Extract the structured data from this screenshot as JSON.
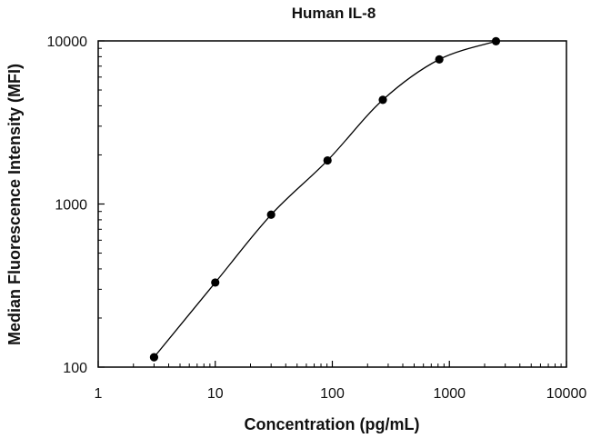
{
  "chart_data": {
    "type": "scatter",
    "title": "Human IL-8",
    "xlabel": "Concentration (pg/mL)",
    "ylabel": "Median Fluorescence Intensity (MFI)",
    "x_scale": "log",
    "y_scale": "log",
    "xlim": [
      1,
      10000
    ],
    "ylim": [
      100,
      10000
    ],
    "x_ticks": [
      1,
      10,
      100,
      1000,
      10000
    ],
    "y_ticks": [
      100,
      1000,
      10000
    ],
    "x_tick_labels": [
      "1",
      "10",
      "100",
      "1000",
      "10000"
    ],
    "y_tick_labels": [
      "100",
      "1000",
      "10000"
    ],
    "grid": false,
    "series": [
      {
        "points": [
          {
            "x": 3,
            "y": 115
          },
          {
            "x": 10,
            "y": 330
          },
          {
            "x": 30,
            "y": 860
          },
          {
            "x": 91,
            "y": 1850
          },
          {
            "x": 270,
            "y": 4350
          },
          {
            "x": 820,
            "y": 7700
          },
          {
            "x": 2500,
            "y": 9950
          }
        ],
        "fit_curve": true,
        "marker_color": "#000000",
        "line_color": "#000000"
      }
    ]
  }
}
